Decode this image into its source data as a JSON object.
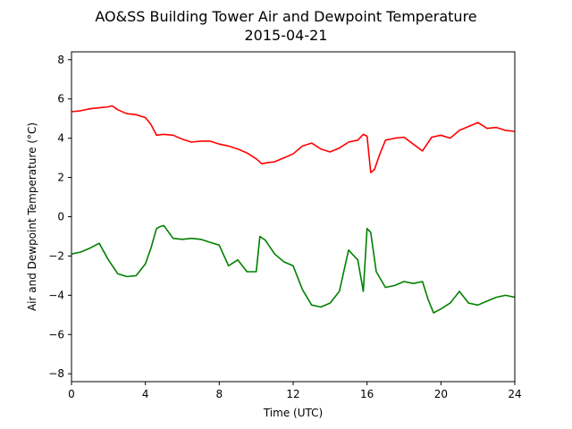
{
  "chart_data": {
    "type": "line",
    "title": "AO&SS Building Tower Air and Dewpoint Temperature",
    "subtitle": "2015-04-21",
    "xlabel": "Time (UTC)",
    "ylabel": "Air and Dewpoint Temperature (°C)",
    "xlim": [
      0,
      24
    ],
    "ylim": [
      -8.4,
      8.4
    ],
    "xticks": [
      0,
      4,
      8,
      12,
      16,
      20,
      24
    ],
    "yticks": [
      -8,
      -6,
      -4,
      -2,
      0,
      2,
      4,
      6,
      8
    ],
    "grid": false,
    "legend": "none",
    "series": [
      {
        "color": "#ff0000",
        "x": [
          0,
          0.5,
          1,
          1.5,
          2,
          2.2,
          2.5,
          3,
          3.5,
          4,
          4.3,
          4.6,
          5,
          5.5,
          6,
          6.5,
          7,
          7.5,
          8,
          8.5,
          9,
          9.5,
          10,
          10.3,
          10.6,
          11,
          11.5,
          12,
          12.5,
          13,
          13.5,
          14,
          14.5,
          15,
          15.5,
          15.8,
          16,
          16.2,
          16.4,
          16.7,
          17,
          17.5,
          18,
          18.5,
          19,
          19.5,
          20,
          20.5,
          21,
          21.5,
          22,
          22.5,
          23,
          23.5,
          24
        ],
        "y": [
          5.35,
          5.4,
          5.5,
          5.55,
          5.6,
          5.65,
          5.45,
          5.25,
          5.2,
          5.05,
          4.7,
          4.15,
          4.2,
          4.15,
          3.95,
          3.8,
          3.85,
          3.85,
          3.7,
          3.6,
          3.45,
          3.25,
          2.95,
          2.7,
          2.75,
          2.8,
          3.0,
          3.2,
          3.6,
          3.75,
          3.45,
          3.3,
          3.5,
          3.8,
          3.9,
          4.2,
          4.1,
          2.25,
          2.4,
          3.2,
          3.9,
          4.0,
          4.05,
          3.7,
          3.35,
          4.05,
          4.15,
          4.0,
          4.4,
          4.6,
          4.8,
          4.5,
          4.55,
          4.4,
          4.35
        ]
      },
      {
        "color": "#008000",
        "x": [
          0,
          0.5,
          1,
          1.5,
          2,
          2.5,
          3,
          3.5,
          4,
          4.3,
          4.6,
          4.8,
          5,
          5.5,
          6,
          6.5,
          7,
          7.5,
          8,
          8.5,
          9,
          9.5,
          10,
          10.2,
          10.5,
          11,
          11.5,
          12,
          12.5,
          13,
          13.5,
          14,
          14.5,
          15,
          15.5,
          15.8,
          16,
          16.2,
          16.5,
          17,
          17.5,
          18,
          18.5,
          19,
          19.3,
          19.6,
          20,
          20.5,
          21,
          21.5,
          22,
          22.5,
          23,
          23.5,
          24
        ],
        "y": [
          -1.9,
          -1.8,
          -1.6,
          -1.35,
          -2.2,
          -2.9,
          -3.05,
          -3.0,
          -2.4,
          -1.6,
          -0.6,
          -0.5,
          -0.45,
          -1.1,
          -1.15,
          -1.1,
          -1.15,
          -1.3,
          -1.45,
          -2.5,
          -2.2,
          -2.8,
          -2.8,
          -1.0,
          -1.2,
          -1.9,
          -2.3,
          -2.5,
          -3.7,
          -4.5,
          -4.6,
          -4.4,
          -3.8,
          -1.7,
          -2.2,
          -3.8,
          -0.6,
          -0.8,
          -2.8,
          -3.6,
          -3.5,
          -3.3,
          -3.4,
          -3.3,
          -4.2,
          -4.9,
          -4.7,
          -4.4,
          -3.8,
          -4.4,
          -4.5,
          -4.3,
          -4.1,
          -4.0,
          -4.1
        ]
      }
    ]
  }
}
